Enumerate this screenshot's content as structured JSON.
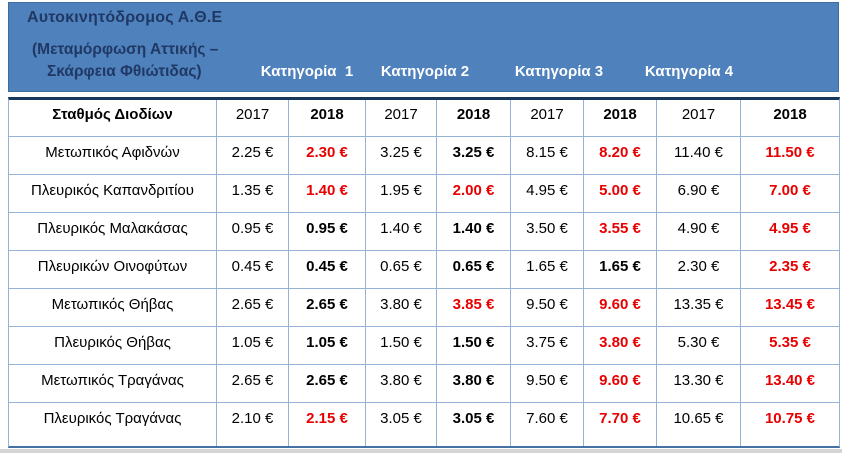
{
  "header": {
    "title_line1": "Αυτοκινητόδρομος Α.Θ.Ε",
    "title_line2": "(Μεταμόρφωση Αττικής –",
    "title_line3": "Σκάρφεια Φθιώτιδας)",
    "categories": [
      "Κατηγορία  1",
      "Κατηγορία 2",
      "Κατηγορία 3",
      "Κατηγορία 4"
    ]
  },
  "table": {
    "station_header": "Σταθμός Διοδίων",
    "year_headers": [
      "2017",
      "2018",
      "2017",
      "2018",
      "2017",
      "2018",
      "2017",
      "2018"
    ],
    "rows": [
      {
        "station": "Μετωπικός Αφιδνών",
        "prices": [
          {
            "v": "2.25 €"
          },
          {
            "v": "2.30 €",
            "hl": true
          },
          {
            "v": "3.25 €"
          },
          {
            "v": "3.25 €"
          },
          {
            "v": "8.15 €"
          },
          {
            "v": "8.20 €",
            "hl": true
          },
          {
            "v": "11.40 €"
          },
          {
            "v": "11.50 €",
            "hl": true
          }
        ]
      },
      {
        "station": "Πλευρικός Καπανδριτίου",
        "prices": [
          {
            "v": "1.35 €"
          },
          {
            "v": "1.40 €",
            "hl": true
          },
          {
            "v": "1.95 €"
          },
          {
            "v": "2.00 €",
            "hl": true
          },
          {
            "v": "4.95 €"
          },
          {
            "v": "5.00 €",
            "hl": true
          },
          {
            "v": "6.90 €"
          },
          {
            "v": "7.00 €",
            "hl": true
          }
        ]
      },
      {
        "station": "Πλευρικός Μαλακάσας",
        "prices": [
          {
            "v": "0.95 €"
          },
          {
            "v": "0.95 €"
          },
          {
            "v": "1.40 €"
          },
          {
            "v": "1.40 €"
          },
          {
            "v": "3.50 €"
          },
          {
            "v": "3.55 €",
            "hl": true
          },
          {
            "v": "4.90 €"
          },
          {
            "v": "4.95 €",
            "hl": true
          }
        ]
      },
      {
        "station": "Πλευρικών Οινοφύτων",
        "prices": [
          {
            "v": "0.45 €"
          },
          {
            "v": "0.45 €"
          },
          {
            "v": "0.65 €"
          },
          {
            "v": "0.65 €"
          },
          {
            "v": "1.65 €"
          },
          {
            "v": "1.65 €"
          },
          {
            "v": "2.30 €"
          },
          {
            "v": "2.35 €",
            "hl": true
          }
        ]
      },
      {
        "station": "Μετωπικός Θήβας",
        "prices": [
          {
            "v": "2.65 €"
          },
          {
            "v": "2.65 €"
          },
          {
            "v": "3.80 €"
          },
          {
            "v": "3.85 €",
            "hl": true
          },
          {
            "v": "9.50 €"
          },
          {
            "v": "9.60 €",
            "hl": true
          },
          {
            "v": "13.35 €"
          },
          {
            "v": "13.45 €",
            "hl": true
          }
        ]
      },
      {
        "station": "Πλευρικός Θήβας",
        "prices": [
          {
            "v": "1.05 €"
          },
          {
            "v": "1.05 €"
          },
          {
            "v": "1.50 €"
          },
          {
            "v": "1.50 €"
          },
          {
            "v": "3.75 €"
          },
          {
            "v": "3.80 €",
            "hl": true
          },
          {
            "v": "5.30 €"
          },
          {
            "v": "5.35 €",
            "hl": true
          }
        ]
      },
      {
        "station": "Μετωπικός Τραγάνας",
        "prices": [
          {
            "v": "2.65 €"
          },
          {
            "v": "2.65 €"
          },
          {
            "v": "3.80 €"
          },
          {
            "v": "3.80 €"
          },
          {
            "v": "9.50 €"
          },
          {
            "v": "9.60 €",
            "hl": true
          },
          {
            "v": "13.30 €"
          },
          {
            "v": "13.40 €",
            "hl": true
          }
        ]
      },
      {
        "station": "Πλευρικός Τραγάνας",
        "prices": [
          {
            "v": "2.10 €"
          },
          {
            "v": "2.15 €",
            "hl": true
          },
          {
            "v": "3.05 €"
          },
          {
            "v": "3.05 €"
          },
          {
            "v": "7.60 €"
          },
          {
            "v": "7.70 €",
            "hl": true
          },
          {
            "v": "10.65 €"
          },
          {
            "v": "10.75 €",
            "hl": true
          }
        ]
      }
    ]
  },
  "colors": {
    "band_blue": "#4F81BD",
    "band_border": "#3C6E9F",
    "navy_text": "#1F3864",
    "cell_border": "#95B3D7",
    "table_top_border": "#17375D",
    "table_bottom_border": "#4472A4",
    "changed_price_red": "#E80000",
    "text_black": "#000000"
  }
}
